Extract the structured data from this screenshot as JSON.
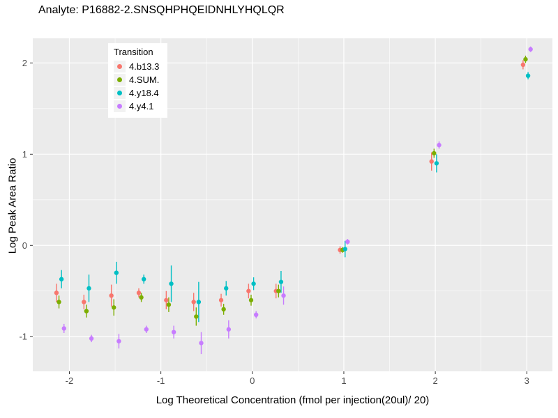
{
  "title": "Analyte: P16882-2.SNSQHPHQEIDNHLYHQLQR",
  "chart_data": {
    "type": "scatter",
    "title": "Analyte: P16882-2.SNSQHPHQEIDNHLYHQLQR",
    "xlabel": "Log Theoretical Concentration (fmol per injection(20ul)/ 20)",
    "ylabel": "Log Peak Area Ratio",
    "legend_title": "Transition",
    "legend_position": "inside-top-left",
    "grid": true,
    "panel_background": "#EBEBEB",
    "grid_color": "#FFFFFF",
    "tick_label_color": "#4D4D4D",
    "xlim": [
      -2.4,
      3.28
    ],
    "ylim": [
      -1.38,
      2.27
    ],
    "x_ticks": [
      -2,
      -1,
      0,
      1,
      2,
      3
    ],
    "y_ticks": [
      -1,
      0,
      1,
      2
    ],
    "x_minor_ticks": [
      -1.5,
      -0.5,
      0.5,
      1.5,
      2.5
    ],
    "y_minor_ticks": [
      -0.5,
      0.5,
      1.5
    ],
    "x": [
      -2.1,
      -1.8,
      -1.5,
      -1.2,
      -0.9,
      -0.6,
      -0.3,
      0,
      0.3,
      1,
      2,
      3
    ],
    "series": [
      {
        "name": "4.b13.3",
        "color": "#F8766D",
        "y": [
          -0.52,
          -0.62,
          -0.55,
          -0.52,
          -0.6,
          -0.62,
          -0.6,
          -0.5,
          -0.5,
          -0.05,
          0.92,
          1.98
        ],
        "yerr": [
          0.1,
          0.08,
          0.12,
          0.05,
          0.1,
          0.1,
          0.07,
          0.08,
          0.08,
          0.04,
          0.1,
          0.05
        ]
      },
      {
        "name": "4.SUM.",
        "color": "#7CAE00",
        "y": [
          -0.62,
          -0.72,
          -0.68,
          -0.57,
          -0.65,
          -0.78,
          -0.7,
          -0.6,
          -0.5,
          -0.05,
          1.01,
          2.04
        ],
        "yerr": [
          0.07,
          0.07,
          0.09,
          0.05,
          0.08,
          0.1,
          0.06,
          0.06,
          0.07,
          0.03,
          0.05,
          0.04
        ]
      },
      {
        "name": "4.y18.4",
        "color": "#00BFC4",
        "y": [
          -0.37,
          -0.47,
          -0.3,
          -0.37,
          -0.42,
          -0.62,
          -0.47,
          -0.42,
          -0.4,
          -0.04,
          0.9,
          1.86
        ],
        "yerr": [
          0.1,
          0.15,
          0.12,
          0.05,
          0.2,
          0.22,
          0.08,
          0.07,
          0.12,
          0.09,
          0.1,
          0.04
        ]
      },
      {
        "name": "4.y4.1",
        "color": "#C77CFF",
        "y": [
          -0.91,
          -1.02,
          -1.05,
          -0.92,
          -0.95,
          -1.07,
          -0.92,
          -0.76,
          -0.55,
          0.04,
          1.1,
          2.15
        ],
        "yerr": [
          0.05,
          0.04,
          0.08,
          0.04,
          0.07,
          0.12,
          0.1,
          0.04,
          0.1,
          0.03,
          0.04,
          0.03
        ]
      }
    ]
  }
}
